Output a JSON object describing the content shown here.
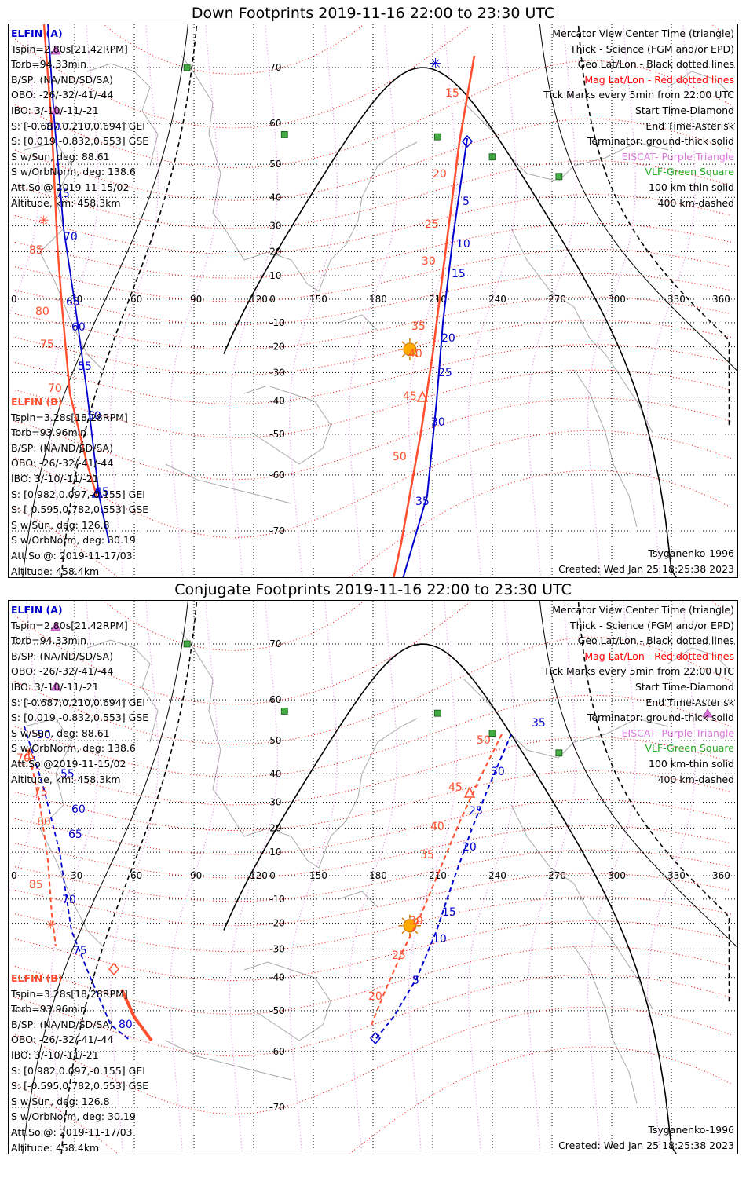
{
  "panels": [
    {
      "title": "Down Footprints 2019-11-16 22:00 to 23:30 UTC",
      "ElfinA": {
        "label": "ELFIN (A)",
        "lines": [
          "Tspin=2.80s[21.42RPM]",
          "Torb=94.33min",
          "B/SP: (NA/ND/SD/SA)",
          "OBO: -26/-32/-41/-44",
          "IBO: 3/-10/-11/-21",
          "S: [-0.687,0.210,0.694] GEI",
          "S: [0.019,-0.832,0.553] GSE",
          "S w/Sun, deg: 88.61",
          "S w/OrbNorm, deg: 138.6",
          "Att.Sol@ 2019-11-15/02",
          "Altitude, km: 458.3km"
        ]
      },
      "ElfinB": {
        "label": "ELFIN (B)",
        "lines": [
          "Tspin=3.28s[18.28RPM]",
          "Torb=93.96min",
          "B/SP: (NA/ND/SD/SA)",
          "OBO: -26/-32/-41/-44",
          "IBO: 3/-10/-11/-21",
          "S: [0.982,0.097,-0.155] GEI",
          "S: [-0.595,0.782,0.553] GSE",
          "S w/Sun, deg: 126.8",
          "S w/OrbNorm, deg: 30.19",
          "Att.Sol@: 2019-11-17/03",
          "Altitude: 458.4km"
        ]
      },
      "legend": [
        "Mercator View Center Time (triangle)",
        "Thick - Science (FGM and/or EPD)",
        "Geo Lat/Lon - Black dotted lines",
        "Mag Lat/Lon - Red dotted lines",
        "Tick Marks every 5min from 22:00 UTC",
        "Start Time-Diamond",
        "End Time-Asterisk",
        "Terminator: ground-thick solid",
        "EISCAT- Purple Triangle",
        "VLF-Green Square",
        "100 km-thin solid",
        "400 km-dashed"
      ],
      "footer_right_top": "Tsyganenko-1996",
      "footer_right_bottom": "Created: Wed Jan 25 18:25:38 2023",
      "blue_ticks": [
        "5",
        "10",
        "15",
        "20",
        "25",
        "30",
        "35"
      ],
      "red_ticks": [
        "15",
        "20",
        "25",
        "30",
        "35",
        "40",
        "45",
        "50"
      ],
      "blue_left_ticks": [
        "80",
        "75",
        "70",
        "65",
        "60",
        "55",
        "50",
        "45"
      ],
      "red_left_ticks": [
        "85",
        "80",
        "75",
        "70"
      ]
    },
    {
      "title": "Conjugate Footprints 2019-11-16 22:00 to 23:30 UTC",
      "ElfinA": {
        "label": "ELFIN (A)",
        "lines": [
          "Tspin=2.80s[21.42RPM]",
          "Torb=94.33min",
          "B/SP: (NA/ND/SD/SA)",
          "OBO: -26/-32/-41/-44",
          "IBO: 3/-10/-11/-21",
          "S: [-0.687,0.210,0.694] GEI",
          "S: [0.019,-0.832,0.553] GSE",
          "S w/Sun, deg: 88.61",
          "S w/OrbNorm, deg: 138.6",
          "Att.Sol@2019-11-15/02",
          "Altitude, km: 458.3km"
        ]
      },
      "ElfinB": {
        "label": "ELFIN (B)",
        "lines": [
          "Tspin=3.28s[18.28RPM]",
          "Torb=93.96min",
          "B/SP: (NA/ND/SD/SA)",
          "OBO: -26/-32/-41/-44",
          "IBO: 3/-10/-11/-21",
          "S: [0.982,0.097,-0.155] GEI",
          "S: [-0.595,0.782,0.553] GSE",
          "S w/Sun, deg: 126.8",
          "S w/OrbNorm, deg: 30.19",
          "Att.Sol@: 2019-11-17/03",
          "Altitude: 458.4km"
        ]
      },
      "legend": [
        "Mercator View Center Time (triangle)",
        "Thick - Science (FGM and/or EPD)",
        "Geo Lat/Lon - Black dotted lines",
        "Mag Lat/Lon - Red dotted lines",
        "Tick Marks every 5min from 22:00 UTC",
        "Start Time-Diamond",
        "End Time-Asterisk",
        "Terminator: ground-thick solid",
        "EISCAT- Purple Triangle",
        "VLF-Green Square",
        "100 km-thin solid",
        "400 km-dashed"
      ],
      "footer_right_top": "Tsyganenko-1996",
      "footer_right_bottom": "Created: Wed Jan 25 18:25:38 2023",
      "blue_ticks": [
        "35",
        "30",
        "25",
        "20",
        "15",
        "10",
        "5"
      ],
      "red_ticks": [
        "50",
        "45",
        "40",
        "35",
        "30",
        "25",
        "20"
      ],
      "blue_left_ticks": [
        "50",
        "55",
        "60",
        "65",
        "70",
        "75",
        "80"
      ],
      "red_left_ticks": [
        "70",
        "75",
        "80",
        "85"
      ]
    }
  ],
  "lon_labels": [
    "0",
    "30",
    "60",
    "90",
    "120",
    "150",
    "180",
    "210",
    "240",
    "270",
    "300",
    "330",
    "360"
  ],
  "lat_labels": [
    "70",
    "60",
    "50",
    "40",
    "30",
    "20",
    "10",
    "0",
    "-10",
    "-20",
    "-30",
    "-40",
    "-50",
    "-60",
    "-70"
  ],
  "colors": {
    "elfin_a": "#0000cc",
    "elfin_b": "#ff4f2e",
    "mag_grid": "#ff0000",
    "geo_grid": "#000000",
    "eiscat": "#dd77dd",
    "vlf": "#44aa44",
    "sun": "#ffaa00",
    "coast": "#aaaaaa"
  },
  "map_data": {
    "projection": "mercator",
    "lon_range": [
      0,
      360
    ],
    "lat_range": [
      -80,
      80
    ],
    "vlf_sites": [
      [
        86.5,
        70.0
      ],
      [
        135.5,
        57.5
      ],
      [
        212.5,
        57.0
      ],
      [
        240.0,
        52.0
      ],
      [
        273.5,
        46.5
      ]
    ],
    "sun_subpoint": [
      198.5,
      -21.0
    ]
  }
}
